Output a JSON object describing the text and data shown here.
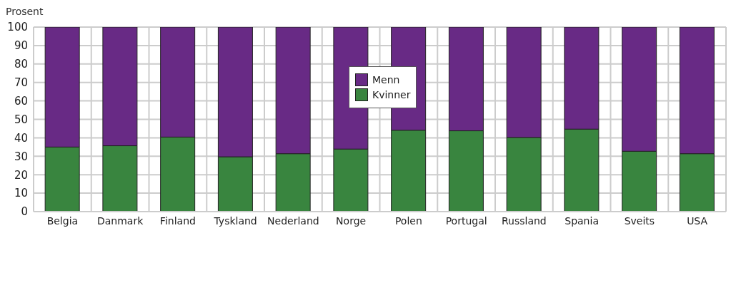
{
  "chart_data": {
    "type": "bar",
    "stacked": true,
    "ylabel": "Prosent",
    "categories": [
      "Belgia",
      "Danmark",
      "Finland",
      "Tyskland",
      "Nederland",
      "Norge",
      "Polen",
      "Portugal",
      "Russland",
      "Spania",
      "Sveits",
      "USA"
    ],
    "series": [
      {
        "name": "Kvinner",
        "color": "#39853f",
        "values": [
          35,
          35.7,
          40.4,
          29.7,
          31.4,
          33.9,
          44.1,
          43.8,
          40.2,
          44.7,
          32.7,
          31.4
        ]
      },
      {
        "name": "Menn",
        "color": "#682a85",
        "values": [
          65,
          64.3,
          59.6,
          70.3,
          68.6,
          66.1,
          55.9,
          56.2,
          59.8,
          55.3,
          67.3,
          68.6
        ]
      }
    ],
    "ylim": [
      0,
      100
    ],
    "yticks": [
      0,
      10,
      20,
      30,
      40,
      50,
      60,
      70,
      80,
      90,
      100
    ],
    "grid": true,
    "legend": "top"
  }
}
